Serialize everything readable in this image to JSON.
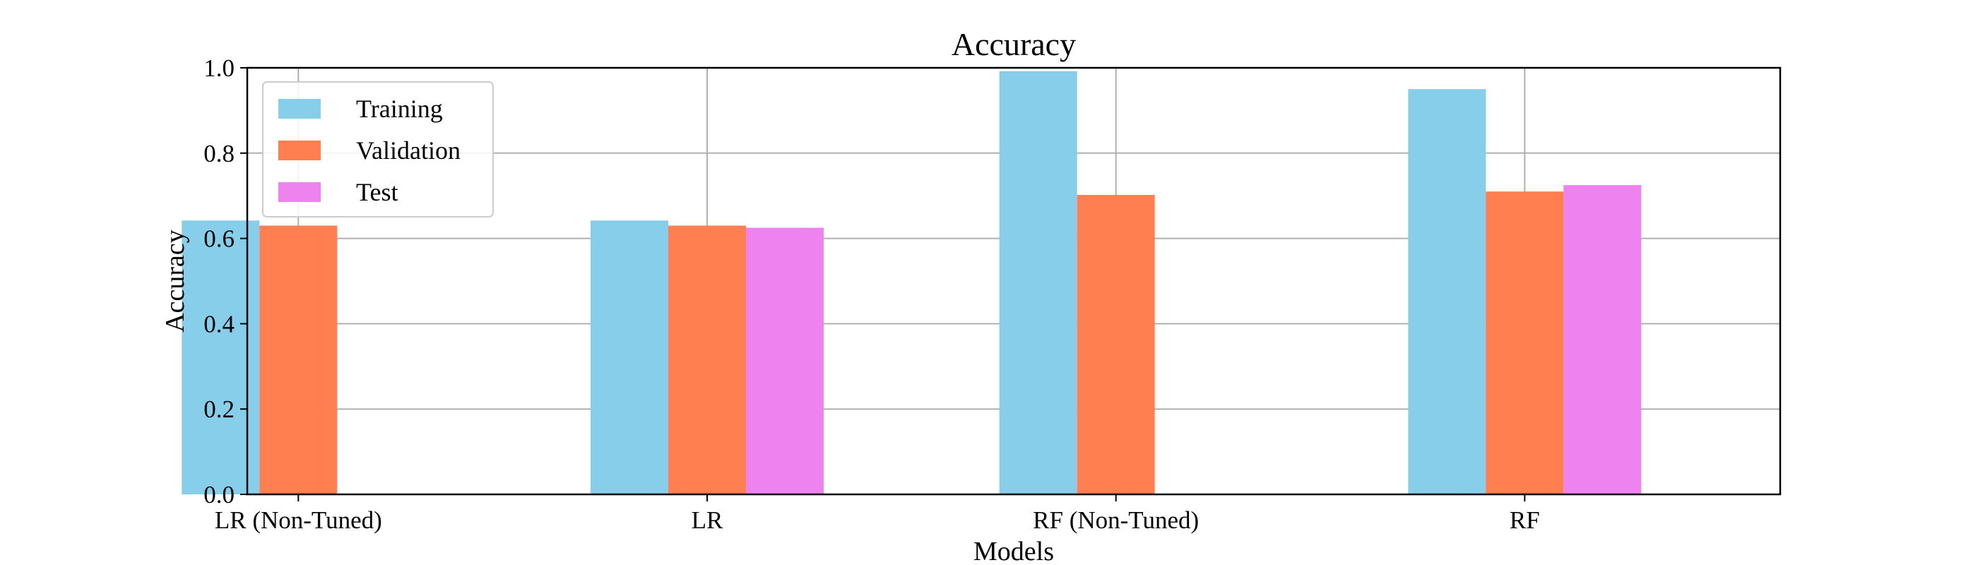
{
  "chart_data": {
    "type": "bar",
    "title": "Accuracy",
    "xlabel": "Models",
    "ylabel": "Accuracy",
    "categories": [
      "LR (Non-Tuned)",
      "LR",
      "RF (Non-Tuned)",
      "RF"
    ],
    "series": [
      {
        "name": "Training",
        "color": "#87ceeb",
        "values": [
          0.642,
          0.642,
          0.992,
          0.95
        ]
      },
      {
        "name": "Validation",
        "color": "#ff7f50",
        "values": [
          0.63,
          0.63,
          0.702,
          0.71
        ]
      },
      {
        "name": "Test",
        "color": "#ee82ee",
        "values": [
          null,
          0.625,
          null,
          0.725
        ]
      }
    ],
    "ylim": [
      0,
      1.0
    ],
    "yticks": [
      "0.0",
      "0.2",
      "0.4",
      "0.6",
      "0.8",
      "1.0"
    ],
    "grid": true,
    "legend_position": "top-left"
  }
}
